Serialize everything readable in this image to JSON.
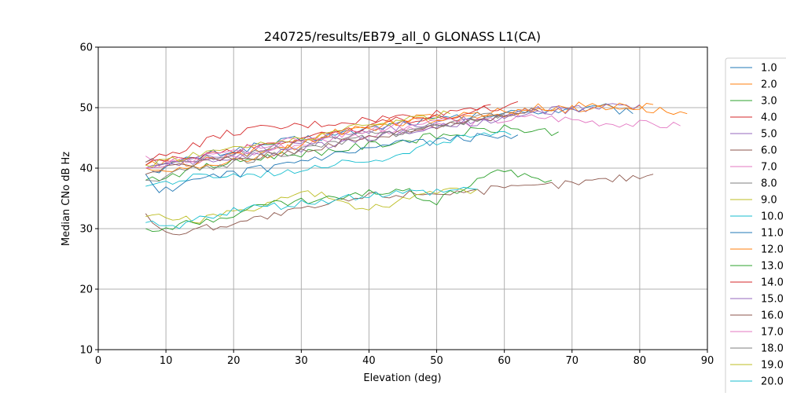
{
  "chart_data": {
    "type": "line",
    "title": "240725/results/EB79_all_0 GLONASS L1(CA)",
    "xlabel": "Elevation (deg)",
    "ylabel": "Median CNo dB Hz",
    "xlim": [
      0,
      90
    ],
    "ylim": [
      10,
      60
    ],
    "xticks": [
      "0",
      "10",
      "20",
      "30",
      "40",
      "50",
      "60",
      "70",
      "80",
      "90"
    ],
    "yticks": [
      "10",
      "20",
      "30",
      "40",
      "50",
      "60"
    ],
    "grid": true,
    "legend_position": "right (clipped at bottom)",
    "series": [
      {
        "name": "1.0",
        "color": "#1f77b4",
        "x": [
          8,
          15,
          25,
          35,
          45,
          55,
          65,
          75,
          79
        ],
        "y": [
          39.5,
          42,
          44,
          45.5,
          47.5,
          48.5,
          49.5,
          50,
          49
        ]
      },
      {
        "name": "2.0",
        "color": "#ff7f0e",
        "x": [
          7,
          15,
          25,
          35,
          45,
          55,
          65,
          75,
          87
        ],
        "y": [
          40.5,
          41,
          43,
          46,
          48,
          49,
          50,
          50.5,
          49
        ]
      },
      {
        "name": "3.0",
        "color": "#2ca02c",
        "x": [
          7,
          15,
          25,
          35,
          45,
          55,
          60,
          68
        ],
        "y": [
          38,
          40,
          42,
          43,
          44.5,
          46,
          46.5,
          46
        ]
      },
      {
        "name": "4.0",
        "color": "#d62728",
        "x": [
          7,
          12,
          20,
          30,
          40,
          50,
          58
        ],
        "y": [
          41,
          43,
          46,
          47,
          48,
          49,
          50.5
        ]
      },
      {
        "name": "5.0",
        "color": "#9467bd",
        "x": [
          7,
          15,
          25,
          35,
          45,
          55,
          65,
          75,
          80
        ],
        "y": [
          40,
          41.5,
          43.5,
          45.5,
          47,
          48,
          49.5,
          50,
          50.5
        ]
      },
      {
        "name": "6.0",
        "color": "#8c564b",
        "x": [
          7,
          10,
          20,
          30,
          40,
          50,
          60,
          70,
          82
        ],
        "y": [
          32.5,
          29,
          31,
          33,
          35.5,
          36,
          36.5,
          37.5,
          39
        ]
      },
      {
        "name": "7.0",
        "color": "#e377c2",
        "x": [
          7,
          15,
          25,
          35,
          45,
          55,
          65,
          75,
          86
        ],
        "y": [
          42,
          41,
          43,
          45,
          46,
          47.5,
          48.5,
          47.5,
          47
        ]
      },
      {
        "name": "8.0",
        "color": "#7f7f7f",
        "x": [
          7,
          15,
          25,
          35,
          45,
          55,
          62
        ],
        "y": [
          41,
          41.5,
          43,
          45,
          46,
          48,
          49
        ]
      },
      {
        "name": "9.0",
        "color": "#bcbd22",
        "x": [
          7,
          15,
          25,
          30,
          35,
          40,
          45,
          50,
          56
        ],
        "y": [
          32,
          31.5,
          34,
          36,
          35,
          33,
          35,
          36,
          36.5
        ]
      },
      {
        "name": "10.0",
        "color": "#17becf",
        "x": [
          7,
          15,
          25,
          35,
          45,
          50,
          55,
          61
        ],
        "y": [
          37,
          38.5,
          39,
          41,
          42,
          44.5,
          45,
          45.5
        ]
      },
      {
        "name": "11.0",
        "color": "#1f77b4",
        "x": [
          7,
          9,
          15,
          25,
          35,
          45,
          55,
          62
        ],
        "y": [
          39,
          36,
          38,
          40,
          42,
          44,
          45,
          45.5
        ]
      },
      {
        "name": "12.0",
        "color": "#ff7f0e",
        "x": [
          7,
          15,
          25,
          35,
          45,
          55,
          65,
          75,
          82
        ],
        "y": [
          40,
          40,
          42,
          46,
          47.5,
          48.5,
          49.5,
          50,
          50.5
        ]
      },
      {
        "name": "13.0",
        "color": "#2ca02c",
        "x": [
          7,
          15,
          25,
          35,
          45,
          50,
          58,
          67
        ],
        "y": [
          30,
          31,
          34,
          35,
          36.5,
          34.5,
          39.5,
          38
        ]
      },
      {
        "name": "14.0",
        "color": "#d62728",
        "x": [
          7,
          15,
          25,
          35,
          45,
          55,
          62
        ],
        "y": [
          40.5,
          42,
          44,
          46,
          48,
          49,
          51
        ]
      },
      {
        "name": "15.0",
        "color": "#9467bd",
        "x": [
          7,
          15,
          25,
          35,
          45,
          55,
          65,
          72
        ],
        "y": [
          40,
          41,
          42.5,
          44,
          46,
          47.5,
          49,
          50
        ]
      },
      {
        "name": "16.0",
        "color": "#8c564b",
        "x": [
          7,
          15,
          25,
          35,
          45,
          55,
          65
        ],
        "y": [
          39,
          41,
          42,
          44,
          46,
          48,
          49.5
        ]
      },
      {
        "name": "17.0",
        "color": "#e377c2",
        "x": [
          7,
          15,
          25,
          35,
          45,
          55
        ],
        "y": [
          40,
          42,
          44,
          45.5,
          47,
          48
        ]
      },
      {
        "name": "18.0",
        "color": "#7f7f7f",
        "x": [
          7,
          15,
          25,
          35,
          45,
          55,
          60
        ],
        "y": [
          38,
          40,
          42,
          44,
          46,
          48,
          49
        ]
      },
      {
        "name": "19.0",
        "color": "#bcbd22",
        "x": [
          7,
          15,
          25,
          35,
          45,
          52
        ],
        "y": [
          40.5,
          42.5,
          44,
          46,
          48,
          49
        ]
      },
      {
        "name": "20.0",
        "color": "#17becf",
        "x": [
          7,
          10,
          20,
          30,
          40,
          50,
          56
        ],
        "y": [
          31,
          30,
          33,
          34,
          35.5,
          36,
          36.5
        ]
      }
    ],
    "legend_items": [
      "1.0",
      "2.0",
      "3.0",
      "4.0",
      "5.0",
      "6.0",
      "7.0",
      "8.0",
      "9.0",
      "10.0",
      "11.0",
      "12.0",
      "13.0",
      "14.0",
      "15.0",
      "16.0",
      "17.0",
      "18.0",
      "19.0",
      "20.0"
    ]
  }
}
